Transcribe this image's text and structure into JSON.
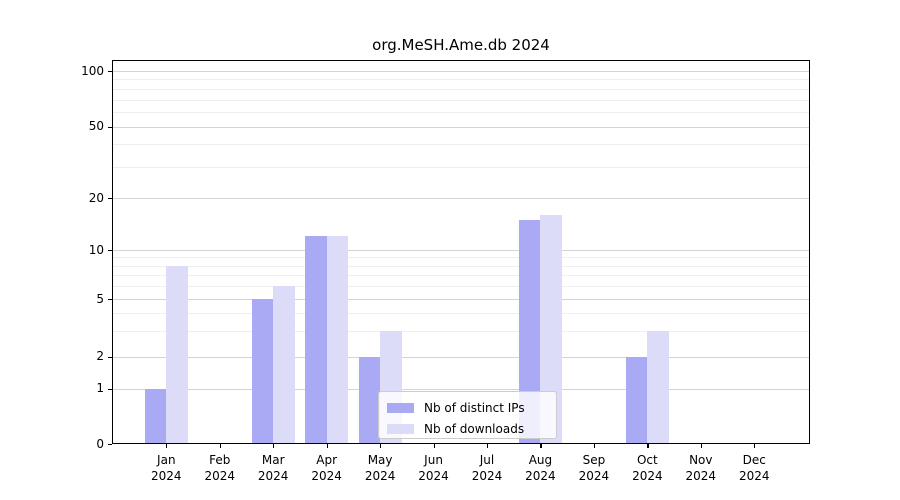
{
  "title": "org.MeSH.Ame.db 2024",
  "legend": {
    "items": [
      {
        "label": "Nb of distinct IPs",
        "color": "#a9a9f4"
      },
      {
        "label": "Nb of downloads",
        "color": "#dcdcf9"
      }
    ]
  },
  "y_axis": {
    "tick_labels": [
      "0",
      "1",
      "2",
      "5",
      "10",
      "20",
      "50",
      "100"
    ]
  },
  "x_axis": {
    "year_line": "2024",
    "months": [
      "Jan",
      "Feb",
      "Mar",
      "Apr",
      "May",
      "Jun",
      "Jul",
      "Aug",
      "Sep",
      "Oct",
      "Nov",
      "Dec"
    ]
  },
  "chart_data": {
    "type": "bar",
    "title": "org.MeSH.Ame.db 2024",
    "categories": [
      "Jan 2024",
      "Feb 2024",
      "Mar 2024",
      "Apr 2024",
      "May 2024",
      "Jun 2024",
      "Jul 2024",
      "Aug 2024",
      "Sep 2024",
      "Oct 2024",
      "Nov 2024",
      "Dec 2024"
    ],
    "series": [
      {
        "name": "Nb of distinct IPs",
        "color": "#a9a9f4",
        "values": [
          1,
          0,
          5,
          12,
          2,
          0,
          0,
          15,
          0,
          2,
          0,
          0
        ]
      },
      {
        "name": "Nb of downloads",
        "color": "#dcdcf9",
        "values": [
          8,
          0,
          6,
          12,
          3,
          0,
          0,
          16,
          0,
          3,
          0,
          0
        ]
      }
    ],
    "xlabel": "",
    "ylabel": "",
    "yscale": "log-above-1-linear-below-1",
    "yticks": [
      0,
      1,
      2,
      5,
      10,
      20,
      50,
      100
    ],
    "minor_gridlines": [
      3,
      4,
      6,
      7,
      8,
      9,
      30,
      40,
      60,
      70,
      80,
      90
    ],
    "ylim": [
      0,
      110
    ],
    "grid": true,
    "legend_position": "inside lower-center"
  }
}
